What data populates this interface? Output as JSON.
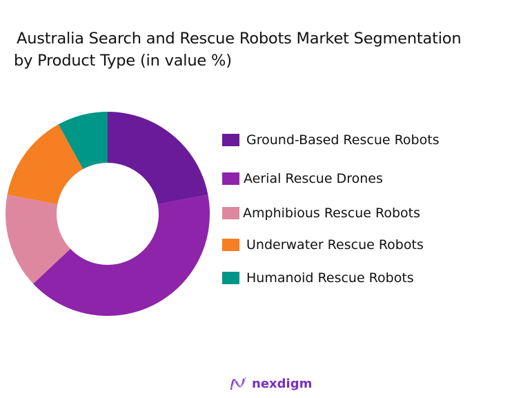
{
  "title": {
    "line1": "Australia Search and Rescue Robots Market Segmentation",
    "line2": "by Product Type (in value %)"
  },
  "brand": {
    "name": "nexdigm",
    "color": "#7a2fbf"
  },
  "legend": [
    {
      "label": "Ground-Based Rescue Robots",
      "color": "#6a1b9a"
    },
    {
      "label": "Aerial Rescue Drones",
      "color": "#8e24aa"
    },
    {
      "label": "Amphibious Rescue Robots",
      "color": "#de88a0"
    },
    {
      "label": "Underwater Rescue Robots",
      "color": "#f57f22"
    },
    {
      "label": "Humanoid Rescue Robots",
      "color": "#009688"
    }
  ],
  "chart_data": {
    "type": "pie",
    "variant": "donut",
    "title": "Australia Search and Rescue Robots Market Segmentation by Product Type (in value %)",
    "categories": [
      "Ground-Based Rescue Robots",
      "Aerial Rescue Drones",
      "Amphibious Rescue Robots",
      "Underwater Rescue Robots",
      "Humanoid Rescue Robots"
    ],
    "values": [
      22,
      41,
      15,
      14,
      8
    ],
    "colors": [
      "#6a1b9a",
      "#8e24aa",
      "#de88a0",
      "#f57f22",
      "#009688"
    ],
    "unit": "%",
    "start_angle": "12 o'clock, clockwise",
    "legend_position": "right",
    "data_labels": false
  }
}
